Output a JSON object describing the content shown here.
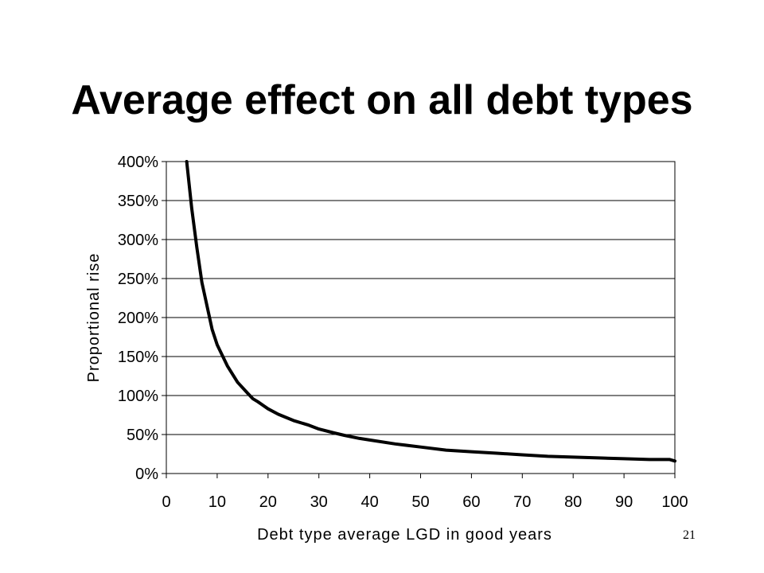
{
  "slide": {
    "title": "Average effect on all debt types",
    "page_number": "21"
  },
  "chart_data": {
    "type": "line",
    "title": "",
    "xlabel": "Debt type average LGD in good years",
    "ylabel": "Proportional rise",
    "xlim": [
      0,
      100
    ],
    "ylim": [
      0,
      400
    ],
    "x_ticks": [
      0,
      10,
      20,
      30,
      40,
      50,
      60,
      70,
      80,
      90,
      100
    ],
    "x_tick_labels": [
      "0",
      "10",
      "20",
      "30",
      "40",
      "50",
      "60",
      "70",
      "80",
      "90",
      "100"
    ],
    "y_ticks": [
      0,
      50,
      100,
      150,
      200,
      250,
      300,
      350,
      400
    ],
    "y_tick_labels": [
      "0%",
      "50%",
      "100%",
      "150%",
      "200%",
      "250%",
      "300%",
      "350%",
      "400%"
    ],
    "grid": "horizontal",
    "legend": "none",
    "line_color": "#000000",
    "series": [
      {
        "x": [
          4,
          5,
          6,
          7,
          8,
          9,
          10,
          12,
          14,
          16,
          17,
          18,
          20,
          22,
          25,
          28,
          30,
          33,
          35,
          38,
          40,
          45,
          50,
          55,
          60,
          65,
          70,
          75,
          80,
          85,
          90,
          95,
          99,
          100
        ],
        "y": [
          400,
          340,
          290,
          245,
          215,
          185,
          165,
          138,
          117,
          103,
          96,
          92,
          83,
          76,
          68,
          62,
          57,
          52,
          49,
          45,
          43,
          38,
          34,
          30,
          28,
          26,
          24,
          22,
          21,
          20,
          19,
          18,
          18,
          16
        ]
      }
    ]
  }
}
